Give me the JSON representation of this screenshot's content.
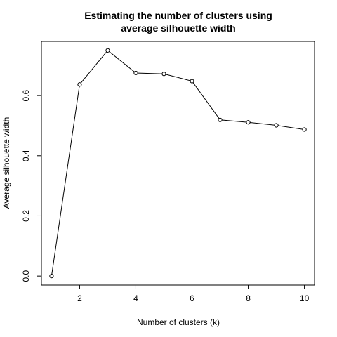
{
  "chart_data": {
    "type": "line",
    "title_lines": [
      "Estimating the number of clusters using",
      "average silhouette width"
    ],
    "xlabel": "Number of clusters (k)",
    "ylabel": "Average silhouette width",
    "xlim": [
      0.64,
      10.36
    ],
    "ylim": [
      -0.03,
      0.78
    ],
    "xticks": [
      2,
      4,
      6,
      8,
      10
    ],
    "yticks": [
      0.0,
      0.2,
      0.4,
      0.6
    ],
    "ytick_labels": [
      "0.0",
      "0.2",
      "0.4",
      "0.6"
    ],
    "x": [
      1,
      2,
      3,
      4,
      5,
      6,
      7,
      8,
      9,
      10
    ],
    "y": [
      0.0,
      0.637,
      0.75,
      0.675,
      0.672,
      0.648,
      0.519,
      0.511,
      0.501,
      0.487
    ],
    "highlight_index": 2,
    "colors": {
      "line": "#000000",
      "point_edge": "#000000",
      "highlight": "#ff0000"
    }
  }
}
